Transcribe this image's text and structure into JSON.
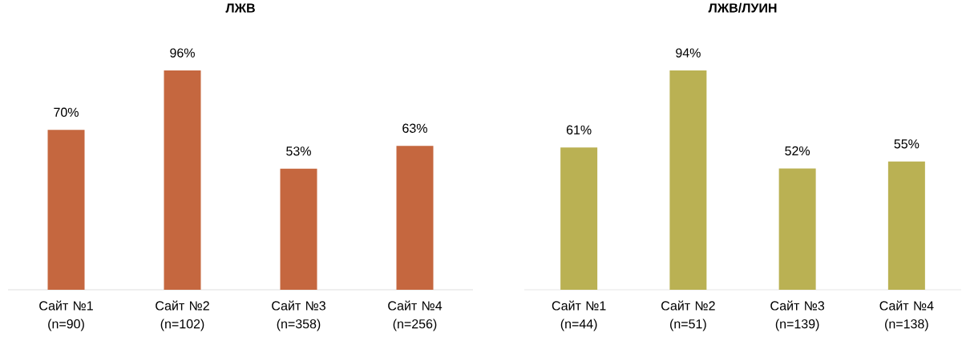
{
  "chart_data": [
    {
      "type": "bar",
      "title": "ЛЖВ",
      "categories": [
        "Сайт №1 (n=90)",
        "Сайт №2 (n=102)",
        "Сайт №3 (n=358)",
        "Сайт №4 (n=256)"
      ],
      "values": [
        70,
        96,
        53,
        63
      ],
      "value_labels": [
        "70%",
        "96%",
        "53%",
        "63%"
      ],
      "color": "#c5673f"
    },
    {
      "type": "bar",
      "title": "ЛЖВ/ЛУИН",
      "categories": [
        "Сайт №1 (n=44)",
        "Сайт №2 (n=51)",
        "Сайт №3 (n=139)",
        "Сайт №4 (n=138)"
      ],
      "values": [
        61,
        94,
        52,
        55
      ],
      "value_labels": [
        "61%",
        "94%",
        "52%",
        "55%"
      ],
      "color": "#bab153"
    }
  ]
}
